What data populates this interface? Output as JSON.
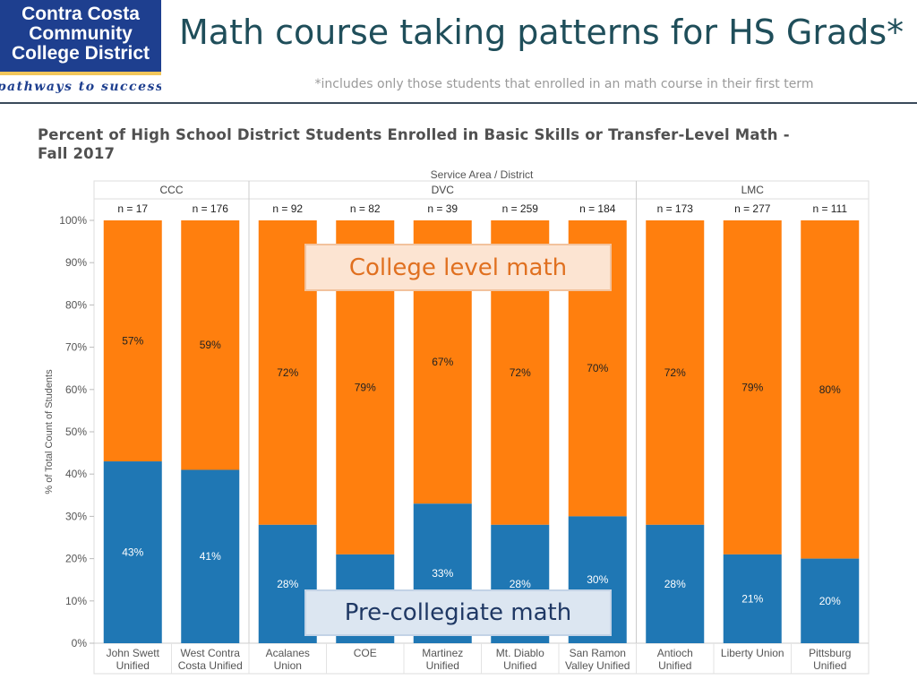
{
  "slide": {
    "title": "Math course taking patterns for HS Grads*",
    "subtitle": "*includes only those students that enrolled in an math course in their first term",
    "logo": {
      "line1": "Contra Costa",
      "line2": "Community",
      "line3": "College District",
      "tagline": "pathways to success",
      "colors": {
        "background": "#1E3F8F",
        "text": "#FFFFFF",
        "band": "#F2C65A",
        "tagline": "#1E3F8F"
      }
    }
  },
  "callouts": {
    "top": "College level math",
    "bottom": "Pre-collegiate math"
  },
  "chart_data": {
    "type": "bar",
    "stacked": true,
    "title": "Percent of High School District Students Enrolled in Basic Skills or Transfer-Level Math - Fall 2017",
    "header_label": "Service Area  /  District",
    "ylabel": "% of Total Count of Students",
    "ylim": [
      0,
      100
    ],
    "yticks": [
      "0%",
      "10%",
      "20%",
      "30%",
      "40%",
      "50%",
      "60%",
      "70%",
      "80%",
      "90%",
      "100%"
    ],
    "groups": [
      {
        "name": "CCC",
        "count": 2
      },
      {
        "name": "DVC",
        "count": 5
      },
      {
        "name": "LMC",
        "count": 3
      }
    ],
    "categories": [
      [
        "John Swett",
        "Unified"
      ],
      [
        "West Contra",
        "Costa Unified"
      ],
      [
        "Acalanes",
        "Union"
      ],
      [
        "COE"
      ],
      [
        "Martinez",
        "Unified"
      ],
      [
        "Mt. Diablo",
        "Unified"
      ],
      [
        "San Ramon",
        "Valley Unified"
      ],
      [
        "Antioch",
        "Unified"
      ],
      [
        "Liberty Union"
      ],
      [
        "Pittsburg",
        "Unified"
      ]
    ],
    "n_labels": [
      "n = 17",
      "n = 176",
      "n = 92",
      "n = 82",
      "n = 39",
      "n = 259",
      "n = 184",
      "n = 173",
      "n = 277",
      "n = 111"
    ],
    "series": [
      {
        "color": "#1F77B4",
        "values": [
          43,
          41,
          28,
          21,
          33,
          28,
          30,
          28,
          21,
          20
        ]
      },
      {
        "color": "#FF7F0E",
        "values": [
          57,
          59,
          72,
          79,
          67,
          72,
          70,
          72,
          79,
          80
        ]
      }
    ],
    "grid": false
  }
}
